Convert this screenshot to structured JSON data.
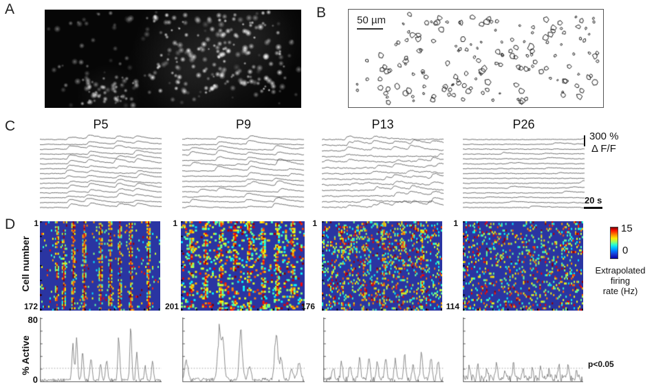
{
  "figure": {
    "panel_a": {
      "label": "A"
    },
    "panel_b": {
      "label": "B",
      "scale_bar_label": "50 µm"
    },
    "panel_c": {
      "label": "C",
      "titles": [
        "P5",
        "P9",
        "P13",
        "P26"
      ],
      "yscale_value": "300 %",
      "yscale_unit": "Δ F/F",
      "xscale_label": "20 s"
    },
    "panel_d": {
      "label": "D",
      "ylabel": "Cell number",
      "first_cell": "1",
      "cell_counts": [
        "172",
        "201",
        "176",
        "114"
      ],
      "colorbar": {
        "max": "15",
        "min": "0",
        "caption_lines": [
          "Extrapolated",
          "firing",
          "rate (Hz)"
        ]
      },
      "active_plots": {
        "ymax": "80",
        "ymin": "0",
        "ylabel": "% Active",
        "significance": "p<0.05"
      }
    }
  },
  "colors": {
    "heatmap_background": "#2a35a2",
    "trace_line": "#3a3a3a",
    "active_line": "#6f6f6f",
    "axis": "#555555",
    "threshold_line": "#999999"
  },
  "render": {
    "photo": {
      "seed": 7,
      "dots": 340
    },
    "outlines": {
      "seed": 11,
      "cells": 168
    },
    "traces": [
      {
        "seed": 21,
        "rows": 15,
        "noise": 0.9,
        "events": [
          0.22,
          0.38,
          0.62,
          0.78
        ],
        "participation": 0.88,
        "amp": 6.5,
        "extra": 0.3
      },
      {
        "seed": 22,
        "rows": 14,
        "noise": 0.9,
        "events": [
          0.05,
          0.28,
          0.52,
          0.75
        ],
        "participation": 0.5,
        "amp": 7.5,
        "extra": 0.8
      },
      {
        "seed": 23,
        "rows": 13,
        "noise": 1.4,
        "events": [
          0.2,
          0.42,
          0.58,
          0.72,
          0.88
        ],
        "participation": 0.5,
        "amp": 7,
        "extra": 1.4
      },
      {
        "seed": 24,
        "rows": 15,
        "noise": 0.9,
        "events": [],
        "participation": 0,
        "amp": 3,
        "extra": 1.1
      }
    ],
    "heatmaps": [
      {
        "seed": 31,
        "bg": 0.05,
        "streaks": [
          0.14,
          0.2,
          0.28,
          0.37,
          0.5,
          0.58,
          0.67,
          0.76,
          0.9
        ],
        "strength": 0.9,
        "coverage": 0.7
      },
      {
        "seed": 32,
        "bg": 0.12,
        "streaks": [
          0.08,
          0.2,
          0.32,
          0.44,
          0.55,
          0.66,
          0.78,
          0.9
        ],
        "strength": 0.75,
        "coverage": 0.55
      },
      {
        "seed": 33,
        "bg": 0.2,
        "streaks": [
          0.18,
          0.35,
          0.52,
          0.68,
          0.84
        ],
        "strength": 0.5,
        "coverage": 0.35
      },
      {
        "seed": 34,
        "bg": 0.17,
        "streaks": [],
        "strength": 0,
        "coverage": 0
      }
    ],
    "active": [
      {
        "seed": 41,
        "base": 4,
        "width": 0.008,
        "peaks": [
          [
            0.27,
            55
          ],
          [
            0.3,
            58
          ],
          [
            0.35,
            40
          ],
          [
            0.42,
            35
          ],
          [
            0.5,
            25
          ],
          [
            0.55,
            30
          ],
          [
            0.65,
            62
          ],
          [
            0.75,
            72
          ],
          [
            0.8,
            38
          ],
          [
            0.87,
            20
          ],
          [
            0.93,
            24
          ]
        ]
      },
      {
        "seed": 42,
        "base": 5,
        "width": 0.013,
        "peaks": [
          [
            0.03,
            30
          ],
          [
            0.3,
            65
          ],
          [
            0.33,
            55
          ],
          [
            0.48,
            66
          ],
          [
            0.55,
            18
          ],
          [
            0.77,
            63
          ],
          [
            0.81,
            30
          ],
          [
            0.9,
            16
          ],
          [
            0.96,
            26
          ]
        ]
      },
      {
        "seed": 43,
        "base": 6,
        "width": 0.009,
        "peaks": [
          [
            0.08,
            20
          ],
          [
            0.15,
            25
          ],
          [
            0.22,
            18
          ],
          [
            0.3,
            30
          ],
          [
            0.38,
            35
          ],
          [
            0.45,
            25
          ],
          [
            0.52,
            30
          ],
          [
            0.6,
            28
          ],
          [
            0.68,
            35
          ],
          [
            0.75,
            22
          ],
          [
            0.82,
            38
          ],
          [
            0.9,
            30
          ],
          [
            0.96,
            25
          ]
        ]
      },
      {
        "seed": 44,
        "base": 9,
        "width": 0.007,
        "peaks": [
          [
            0.05,
            16
          ],
          [
            0.12,
            20
          ],
          [
            0.2,
            14
          ],
          [
            0.28,
            22
          ],
          [
            0.35,
            13
          ],
          [
            0.42,
            18
          ],
          [
            0.5,
            15
          ],
          [
            0.58,
            12
          ],
          [
            0.65,
            19
          ],
          [
            0.72,
            14
          ],
          [
            0.8,
            21
          ],
          [
            0.88,
            17
          ],
          [
            0.95,
            13
          ]
        ]
      }
    ],
    "threshold_value": 17
  }
}
